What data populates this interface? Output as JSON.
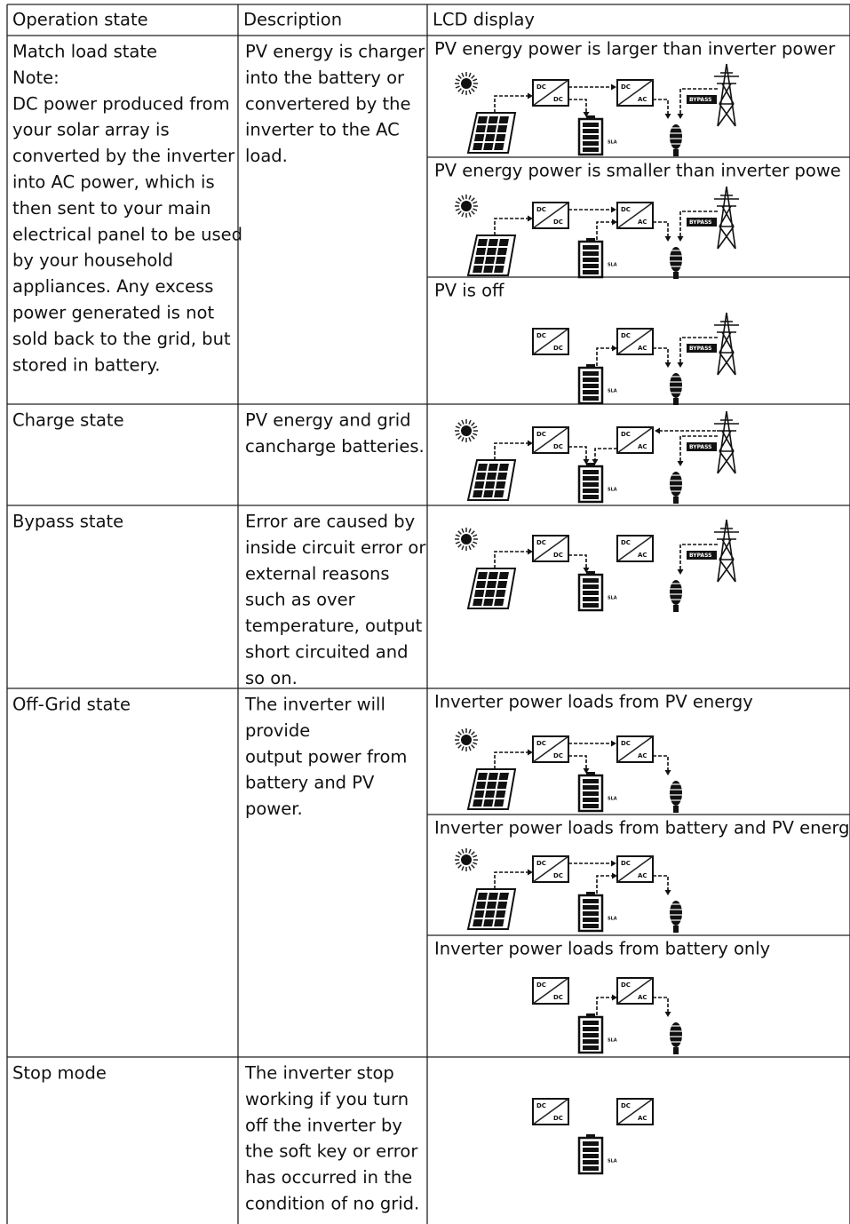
{
  "header": [
    "Operation state",
    "Description",
    "LCD display"
  ],
  "rows": [
    {
      "state": [
        "Match load state",
        "Note:",
        "DC power produced from",
        "your solar array is",
        "converted by the inverter",
        "into AC power, which is",
        "then sent to your main",
        "electrical panel to be used",
        "by your household",
        "appliances. Any excess",
        "power generated is not",
        "sold back to the grid, but",
        "stored in battery."
      ],
      "description": [
        "PV energy is charger",
        "into the battery or",
        "convertered by the",
        "inverter to the AC",
        "load."
      ],
      "lcd": [
        "PV energy power is larger than inverter power",
        "PV energy power is smaller than inverter powe",
        "PV is off"
      ]
    },
    {
      "state": [
        "Charge state"
      ],
      "description": [
        "PV energy and grid",
        "cancharge batteries."
      ],
      "lcd": []
    },
    {
      "state": [
        "Bypass state"
      ],
      "description": [
        "Error are caused by",
        "inside circuit error or",
        "external reasons",
        "such as over",
        "temperature, output",
        "short circuited and",
        "so on."
      ],
      "lcd": []
    },
    {
      "state": [
        "Off-Grid state"
      ],
      "description": [
        "The inverter will",
        "provide",
        "output power from",
        "battery and PV",
        "power."
      ],
      "lcd": [
        "Inverter power loads from PV energy",
        "Inverter power loads from battery and PV energy",
        "Inverter power loads from battery only"
      ]
    },
    {
      "state": [
        "Stop mode"
      ],
      "description": [
        "The inverter stop",
        "working if you turn",
        "off the inverter by",
        "the soft key or error",
        "has occurred in the",
        "condition of no grid."
      ],
      "lcd": []
    }
  ],
  "icons": {
    "dc": "DC",
    "ac": "AC",
    "bypass": "BYPASS",
    "sla": "SLA"
  }
}
